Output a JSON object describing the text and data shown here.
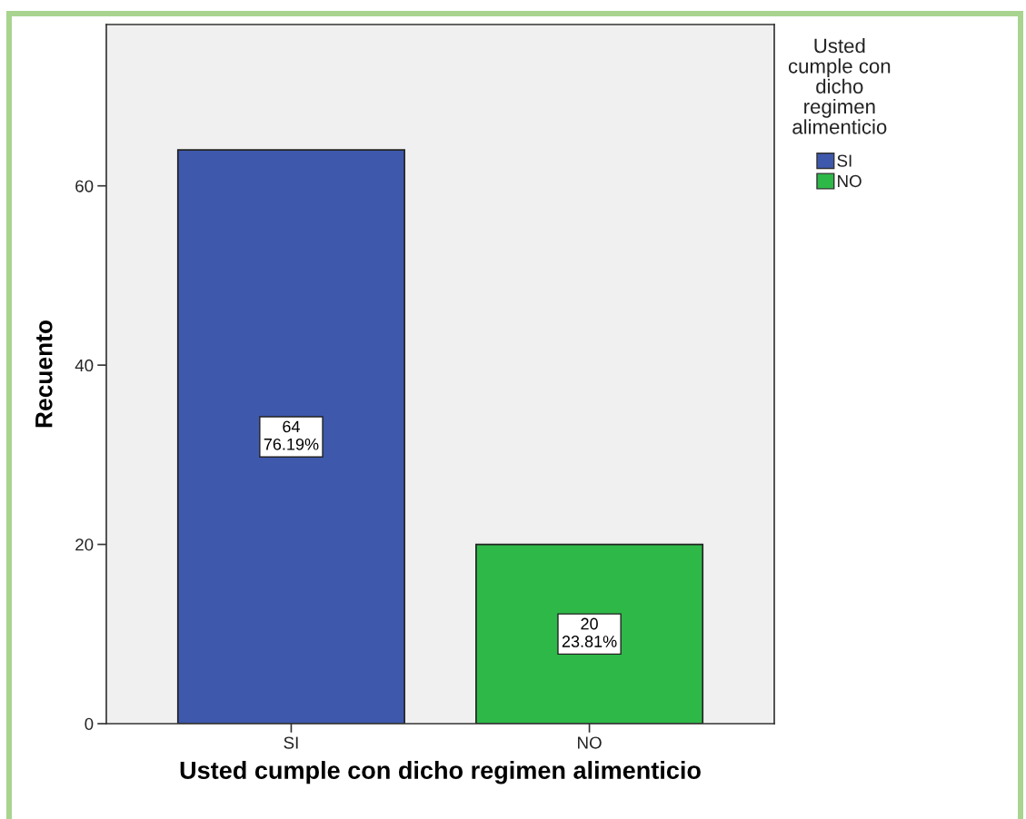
{
  "chart_data": {
    "type": "bar",
    "xlabel": "Usted cumple con dicho regimen alimenticio",
    "ylabel": "Recuento",
    "legend_title": "Usted\ncumple con\ndicho\nregimen\nalimenticio",
    "categories": [
      "SI",
      "NO"
    ],
    "series": [
      {
        "name": "SI",
        "color": "#3e58ac",
        "values": [
          64,
          null
        ],
        "value_labels": [
          "64\n76.19%",
          null
        ]
      },
      {
        "name": "NO",
        "color": "#2eb848",
        "values": [
          null,
          20
        ],
        "value_labels": [
          null,
          "20\n23.81%"
        ]
      }
    ],
    "ylim": [
      0,
      78
    ],
    "yticks": [
      0,
      20,
      40,
      60
    ],
    "grid": false,
    "legend": "top right"
  }
}
